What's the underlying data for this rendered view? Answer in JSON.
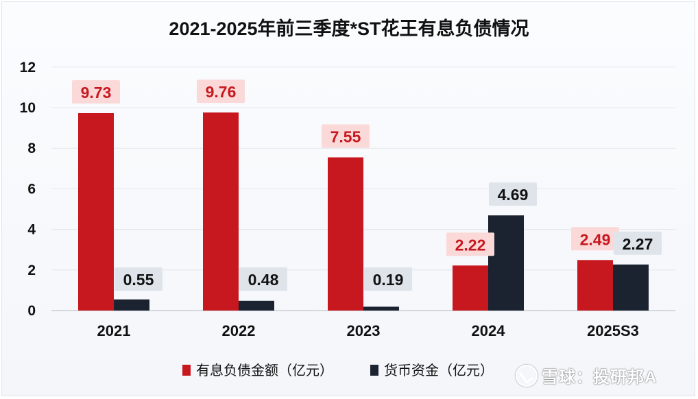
{
  "title": "2021-2025年前三季度*ST花王有息负债情况",
  "watermark": "雪球：投研邦A",
  "chart_data": {
    "type": "bar",
    "categories": [
      "2021",
      "2022",
      "2023",
      "2024",
      "2025S3"
    ],
    "series": [
      {
        "name": "有息负债金额（亿元）",
        "values": [
          9.73,
          9.76,
          7.55,
          2.22,
          2.49
        ],
        "labels": [
          "9.73",
          "9.76",
          "7.55",
          "2.22",
          "2.49"
        ],
        "color": "#c8181f",
        "label_color": "#c8181f",
        "label_bg": "#fbd9d9"
      },
      {
        "name": "货币资金（亿元）",
        "values": [
          0.55,
          0.48,
          0.19,
          4.69,
          2.27
        ],
        "labels": [
          "0.55",
          "0.48",
          "0.19",
          "4.69",
          "2.27"
        ],
        "color": "#1c2330",
        "label_color": "#111111",
        "label_bg": "#dfe4ea"
      }
    ],
    "y_ticks": [
      0,
      2,
      4,
      6,
      8,
      10,
      12
    ],
    "ylim": [
      0,
      12
    ],
    "grid": true,
    "legend_position": "bottom"
  }
}
